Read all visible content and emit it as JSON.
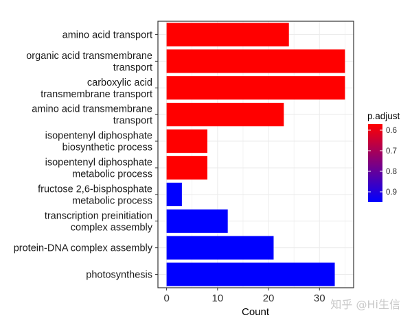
{
  "chart_data": {
    "type": "bar",
    "orientation": "horizontal",
    "categories": [
      [
        "amino acid transport"
      ],
      [
        "organic acid transmembrane",
        "transport"
      ],
      [
        "carboxylic acid",
        "transmembrane transport"
      ],
      [
        "amino acid transmembrane",
        "transport"
      ],
      [
        "isopentenyl diphosphate",
        "biosynthetic process"
      ],
      [
        "isopentenyl diphosphate",
        "metabolic process"
      ],
      [
        "fructose 2,6-bisphosphate",
        "metabolic process"
      ],
      [
        "transcription preinitiation",
        "complex assembly"
      ],
      [
        "protein-DNA complex assembly"
      ],
      [
        "photosynthesis"
      ]
    ],
    "values": [
      24,
      35,
      35,
      23,
      8,
      8,
      3,
      12,
      21,
      33
    ],
    "p_adjust": [
      0.57,
      0.57,
      0.57,
      0.57,
      0.57,
      0.57,
      0.95,
      0.95,
      0.95,
      0.95
    ],
    "xlabel": "Count",
    "xlim": [
      -1.7,
      36.7
    ],
    "xticks": [
      0,
      10,
      20,
      30
    ],
    "grid": true,
    "legend": {
      "title": "p.adjust",
      "position": "right",
      "range": [
        0.57,
        0.95
      ],
      "ticks": [
        0.6,
        0.7,
        0.8,
        0.9
      ],
      "tick_labels": [
        "0.6",
        "0.7",
        "0.8",
        "0.9"
      ],
      "color_low": "#ff0000",
      "color_high": "#0000ff"
    }
  },
  "watermark": "知乎 @Hi生信"
}
